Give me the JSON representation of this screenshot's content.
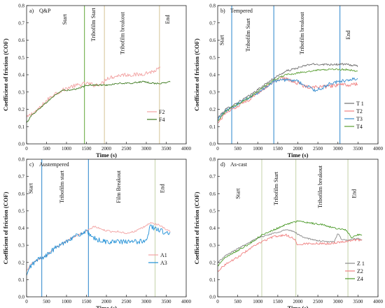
{
  "figure": {
    "x_axis_label": "Time (s)",
    "y_axis_label": "Coefficient of friction (COF)"
  },
  "chart_data": [
    {
      "type": "line",
      "panel_label": "a)",
      "title": "Q&P",
      "xlabel": "Time (s)",
      "ylabel": "Coefficient of friction (COF)",
      "xlim": [
        0,
        4000
      ],
      "ylim": [
        0,
        0.8
      ],
      "xticks": [
        0,
        500,
        1000,
        1500,
        2000,
        2500,
        3000,
        3500,
        4000
      ],
      "yticks": [
        0.0,
        0.1,
        0.2,
        0.3,
        0.4,
        0.5,
        0.6,
        0.7,
        0.8
      ],
      "legend_position": "right",
      "series": [
        {
          "name": "F2",
          "color": "#f2a3a3",
          "noise": 0.012,
          "x": [
            0,
            100,
            300,
            500,
            700,
            900,
            1100,
            1300,
            1500,
            1700,
            1900,
            2000,
            2200,
            2400,
            2600,
            2800,
            3000,
            3200,
            3350
          ],
          "y": [
            0.15,
            0.17,
            0.2,
            0.25,
            0.29,
            0.31,
            0.33,
            0.34,
            0.35,
            0.34,
            0.35,
            0.38,
            0.39,
            0.4,
            0.4,
            0.4,
            0.41,
            0.42,
            0.44
          ]
        },
        {
          "name": "F4",
          "color": "#3d7a1f",
          "noise": 0.004,
          "x": [
            0,
            100,
            300,
            500,
            700,
            900,
            1100,
            1300,
            1500,
            1700,
            2000,
            2300,
            2600,
            2900,
            3200,
            3400,
            3600
          ],
          "y": [
            0.12,
            0.16,
            0.2,
            0.24,
            0.28,
            0.31,
            0.31,
            0.32,
            0.34,
            0.34,
            0.34,
            0.35,
            0.35,
            0.36,
            0.35,
            0.35,
            0.36
          ]
        }
      ],
      "vlines": [
        {
          "x": 1450,
          "color": "#6fae4a"
        },
        {
          "x": 1950,
          "color": "#d8c9a0"
        },
        {
          "x": 3330,
          "color": "#d8c9a0"
        }
      ],
      "annotations": [
        {
          "text": "Start",
          "x": 1000,
          "y": 0.72
        },
        {
          "text": "Tribofilm Start",
          "x": 1720,
          "y": 0.69
        },
        {
          "text": "Tribofilm breakout",
          "x": 2450,
          "y": 0.64
        },
        {
          "text": "End",
          "x": 3580,
          "y": 0.72
        }
      ]
    },
    {
      "type": "line",
      "panel_label": "b)",
      "title": "Tempered",
      "xlabel": "Time (s)",
      "ylabel": "Coefficient of friction (COF)",
      "xlim": [
        0,
        4000
      ],
      "ylim": [
        0,
        0.8
      ],
      "xticks": [
        0,
        500,
        1000,
        1500,
        2000,
        2500,
        3000,
        3500,
        4000
      ],
      "yticks": [
        0.0,
        0.1,
        0.2,
        0.3,
        0.4,
        0.5,
        0.6,
        0.7,
        0.8
      ],
      "legend_position": "right",
      "series": [
        {
          "name": "T 1",
          "color": "#707070",
          "noise": 0.006,
          "x": [
            0,
            200,
            500,
            800,
            1100,
            1400,
            1700,
            2000,
            2300,
            2600,
            2900,
            3200,
            3500
          ],
          "y": [
            0.15,
            0.2,
            0.24,
            0.28,
            0.33,
            0.38,
            0.42,
            0.44,
            0.46,
            0.46,
            0.46,
            0.46,
            0.45
          ]
        },
        {
          "name": "T2",
          "color": "#f08080",
          "noise": 0.01,
          "x": [
            0,
            200,
            500,
            800,
            1100,
            1400,
            1600,
            1800,
            2000,
            2200,
            2400,
            2700,
            3000,
            3300,
            3500
          ],
          "y": [
            0.12,
            0.18,
            0.22,
            0.26,
            0.31,
            0.36,
            0.38,
            0.37,
            0.35,
            0.33,
            0.33,
            0.33,
            0.34,
            0.34,
            0.35
          ]
        },
        {
          "name": "T3",
          "color": "#3b8fd0",
          "noise": 0.01,
          "x": [
            0,
            200,
            500,
            800,
            1100,
            1400,
            1600,
            1800,
            2000,
            2200,
            2400,
            2600,
            2800,
            3000,
            3300,
            3500
          ],
          "y": [
            0.14,
            0.19,
            0.23,
            0.27,
            0.31,
            0.36,
            0.37,
            0.37,
            0.36,
            0.34,
            0.31,
            0.32,
            0.35,
            0.36,
            0.37,
            0.38
          ]
        },
        {
          "name": "T4",
          "color": "#5a9e33",
          "noise": 0.005,
          "x": [
            0,
            200,
            500,
            800,
            1100,
            1400,
            1700,
            2000,
            2300,
            2600,
            2900,
            3200,
            3500
          ],
          "y": [
            0.13,
            0.19,
            0.23,
            0.27,
            0.32,
            0.37,
            0.4,
            0.41,
            0.42,
            0.43,
            0.43,
            0.43,
            0.42
          ]
        }
      ],
      "vlines": [
        {
          "x": 350,
          "color": "#3b8fd0"
        },
        {
          "x": 1400,
          "color": "#3b8fd0"
        },
        {
          "x": 3050,
          "color": "#3b8fd0"
        }
      ],
      "annotations": [
        {
          "text": "Start",
          "x": 150,
          "y": 0.6
        },
        {
          "text": "Tribofilm Start",
          "x": 800,
          "y": 0.63
        },
        {
          "text": "Tribofilm breakout",
          "x": 2150,
          "y": 0.64
        },
        {
          "text": "End",
          "x": 3300,
          "y": 0.63
        }
      ]
    },
    {
      "type": "line",
      "panel_label": "c)",
      "title": "Austempered",
      "xlabel": "Time (s)",
      "ylabel": "Coefficient of friction (COF)",
      "xlim": [
        0,
        4000
      ],
      "ylim": [
        0,
        0.8
      ],
      "xticks": [
        0,
        500,
        1000,
        1500,
        2000,
        2500,
        3000,
        3500,
        4000
      ],
      "yticks": [
        0.0,
        0.1,
        0.2,
        0.3,
        0.4,
        0.5,
        0.6,
        0.7,
        0.8
      ],
      "legend_position": "bottom-right",
      "series": [
        {
          "name": "A1",
          "color": "#f2a3a3",
          "noise": 0.005,
          "x": [
            0,
            100,
            300,
            500,
            700,
            900,
            1100,
            1300,
            1500,
            1700,
            1900,
            2100,
            2300,
            2500,
            2700,
            2900,
            3100,
            3300,
            3500,
            3600
          ],
          "y": [
            0.15,
            0.19,
            0.22,
            0.24,
            0.28,
            0.31,
            0.34,
            0.36,
            0.38,
            0.41,
            0.39,
            0.38,
            0.38,
            0.37,
            0.38,
            0.4,
            0.43,
            0.42,
            0.39,
            0.38
          ]
        },
        {
          "name": "A3",
          "color": "#1f8fd6",
          "noise": 0.014,
          "x": [
            0,
            100,
            300,
            500,
            700,
            900,
            1100,
            1300,
            1500,
            1600,
            1800,
            2000,
            2200,
            2400,
            2600,
            2800,
            3000,
            3100,
            3300,
            3500,
            3600
          ],
          "y": [
            0.12,
            0.18,
            0.22,
            0.24,
            0.28,
            0.31,
            0.34,
            0.36,
            0.38,
            0.35,
            0.33,
            0.32,
            0.32,
            0.32,
            0.32,
            0.32,
            0.33,
            0.41,
            0.39,
            0.37,
            0.37
          ]
        }
      ],
      "vlines": [
        {
          "x": 380,
          "color": "#3b8fd0"
        },
        {
          "x": 1550,
          "color": "#3b8fd0"
        },
        {
          "x": 3220,
          "color": "#c9d6b0"
        }
      ],
      "annotations": [
        {
          "text": "Start",
          "x": 150,
          "y": 0.63
        },
        {
          "text": "Tribofilm start",
          "x": 930,
          "y": 0.64
        },
        {
          "text": "Film Breakout",
          "x": 2350,
          "y": 0.64
        },
        {
          "text": "End",
          "x": 3450,
          "y": 0.63
        }
      ]
    },
    {
      "type": "line",
      "panel_label": "d)",
      "title": "As-cast",
      "xlabel": "Time (s)",
      "ylabel": "Coefficient of friction (COF)",
      "xlim": [
        0,
        4000
      ],
      "ylim": [
        0,
        0.8
      ],
      "xticks": [
        0,
        500,
        1000,
        1500,
        2000,
        2500,
        3000,
        3500,
        4000
      ],
      "yticks": [
        0.0,
        0.1,
        0.2,
        0.3,
        0.4,
        0.5,
        0.6,
        0.7,
        0.8
      ],
      "legend_position": "bottom-right",
      "series": [
        {
          "name": "Z 1",
          "color": "#8a8a8a",
          "noise": 0.004,
          "x": [
            0,
            200,
            500,
            800,
            1100,
            1400,
            1700,
            1900,
            2100,
            2400,
            2700,
            2900,
            3000,
            3100,
            3300,
            3500,
            3600
          ],
          "y": [
            0.2,
            0.24,
            0.28,
            0.32,
            0.35,
            0.37,
            0.39,
            0.38,
            0.35,
            0.33,
            0.32,
            0.32,
            0.37,
            0.33,
            0.33,
            0.34,
            0.33
          ]
        },
        {
          "name": "Z2",
          "color": "#f08080",
          "noise": 0.006,
          "x": [
            0,
            200,
            500,
            800,
            1100,
            1400,
            1700,
            1900,
            2000,
            2200,
            2500,
            2800,
            3100,
            3400,
            3600
          ],
          "y": [
            0.15,
            0.19,
            0.23,
            0.28,
            0.32,
            0.35,
            0.36,
            0.34,
            0.3,
            0.31,
            0.31,
            0.31,
            0.32,
            0.33,
            0.33
          ]
        },
        {
          "name": "Z4",
          "color": "#4c9a2a",
          "noise": 0.005,
          "x": [
            0,
            200,
            500,
            800,
            1100,
            1400,
            1700,
            2000,
            2300,
            2600,
            2900,
            3200,
            3350,
            3450,
            3600
          ],
          "y": [
            0.18,
            0.23,
            0.27,
            0.31,
            0.36,
            0.39,
            0.42,
            0.44,
            0.43,
            0.42,
            0.4,
            0.39,
            0.34,
            0.36,
            0.36
          ]
        }
      ],
      "vlines": [
        {
          "x": 1100,
          "color": "#c9d6b0"
        },
        {
          "x": 1950,
          "color": "#c9d6b0"
        },
        {
          "x": 3250,
          "color": "#c9d6b0"
        }
      ],
      "annotations": [
        {
          "text": "Start",
          "x": 550,
          "y": 0.6
        },
        {
          "text": "Tribofilm Start",
          "x": 1500,
          "y": 0.63
        },
        {
          "text": "Tribofilm breakout",
          "x": 2600,
          "y": 0.64
        },
        {
          "text": "End",
          "x": 3450,
          "y": 0.6
        }
      ]
    }
  ]
}
